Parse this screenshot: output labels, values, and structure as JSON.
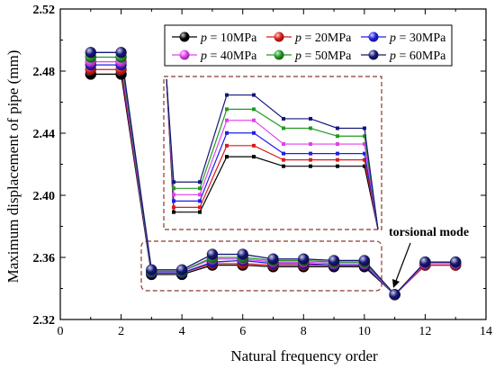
{
  "chart_data": {
    "type": "line",
    "xlabel": "Natural frequency order",
    "ylabel": "Maximum displacement of pipe  (mm)",
    "xlim": [
      0,
      14
    ],
    "ylim": [
      2.32,
      2.52
    ],
    "x_ticks": [
      "0",
      "2",
      "4",
      "6",
      "8",
      "10",
      "12",
      "14"
    ],
    "y_ticks": [
      "2.32",
      "2.36",
      "2.40",
      "2.44",
      "2.48",
      "2.52"
    ],
    "x": [
      1,
      2,
      3,
      4,
      5,
      6,
      7,
      8,
      9,
      10,
      11,
      12,
      13
    ],
    "series": [
      {
        "name": "p = 10MPa",
        "color": "#000000",
        "values": [
          2.478,
          2.478,
          2.349,
          2.349,
          2.355,
          2.355,
          2.354,
          2.354,
          2.354,
          2.354,
          2.336,
          2.355,
          2.355
        ]
      },
      {
        "name": "p = 20MPa",
        "color": "#dd1a1a",
        "values": [
          2.481,
          2.481,
          2.35,
          2.35,
          2.356,
          2.356,
          2.355,
          2.355,
          2.355,
          2.355,
          2.336,
          2.355,
          2.355
        ]
      },
      {
        "name": "p = 30MPa",
        "color": "#1f1fe6",
        "values": [
          2.484,
          2.484,
          2.35,
          2.35,
          2.357,
          2.358,
          2.356,
          2.356,
          2.355,
          2.355,
          2.336,
          2.356,
          2.356
        ]
      },
      {
        "name": "p = 40MPa",
        "color": "#e040ee",
        "values": [
          2.486,
          2.486,
          2.351,
          2.351,
          2.359,
          2.359,
          2.357,
          2.357,
          2.356,
          2.356,
          2.336,
          2.356,
          2.356
        ]
      },
      {
        "name": "p = 50MPa",
        "color": "#229922",
        "values": [
          2.489,
          2.489,
          2.351,
          2.351,
          2.36,
          2.36,
          2.358,
          2.358,
          2.357,
          2.357,
          2.336,
          2.357,
          2.357
        ]
      },
      {
        "name": "p = 60MPa",
        "color": "#16167a",
        "values": [
          2.492,
          2.492,
          2.352,
          2.352,
          2.362,
          2.362,
          2.359,
          2.359,
          2.358,
          2.358,
          2.336,
          2.357,
          2.357
        ]
      }
    ],
    "inset_points": {
      "x_range": [
        3.6,
        10.1
      ],
      "series_values": [
        [
          2.391,
          2.391,
          2.426,
          2.426,
          2.42,
          2.42,
          2.42,
          2.42
        ],
        [
          2.394,
          2.394,
          2.433,
          2.433,
          2.424,
          2.424,
          2.424,
          2.424
        ],
        [
          2.398,
          2.398,
          2.441,
          2.441,
          2.428,
          2.428,
          2.428,
          2.428
        ],
        [
          2.402,
          2.402,
          2.449,
          2.449,
          2.434,
          2.434,
          2.434,
          2.434
        ],
        [
          2.406,
          2.406,
          2.456,
          2.456,
          2.444,
          2.444,
          2.439,
          2.439
        ],
        [
          2.41,
          2.41,
          2.465,
          2.465,
          2.45,
          2.45,
          2.444,
          2.444
        ]
      ]
    },
    "annotation": "torsional mode",
    "legend_position": "top-right",
    "grid": false
  }
}
